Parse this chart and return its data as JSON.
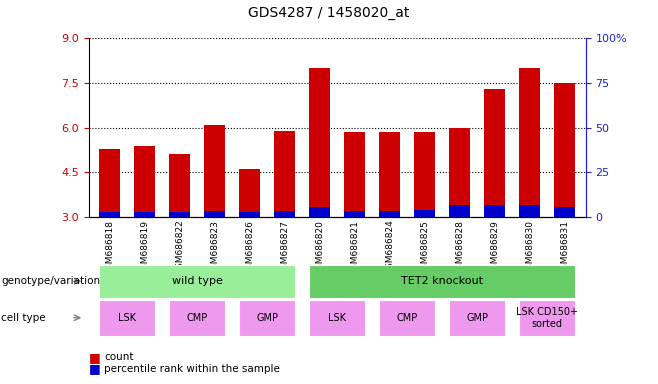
{
  "title": "GDS4287 / 1458020_at",
  "samples": [
    "GSM686818",
    "GSM686819",
    "GSM686822",
    "GSM686823",
    "GSM686826",
    "GSM686827",
    "GSM686820",
    "GSM686821",
    "GSM686824",
    "GSM686825",
    "GSM686828",
    "GSM686829",
    "GSM686830",
    "GSM686831"
  ],
  "count_values": [
    5.3,
    5.4,
    5.1,
    6.1,
    4.6,
    5.9,
    8.0,
    5.85,
    5.85,
    5.85,
    6.0,
    7.3,
    8.0,
    7.5
  ],
  "percentile_values": [
    3.15,
    3.15,
    3.15,
    3.2,
    3.15,
    3.2,
    3.35,
    3.2,
    3.2,
    3.25,
    3.4,
    3.4,
    3.4,
    3.35
  ],
  "ylim_left": [
    3,
    9
  ],
  "ylim_right": [
    0,
    100
  ],
  "yticks_left": [
    3,
    4.5,
    6,
    7.5,
    9
  ],
  "yticks_right": [
    0,
    25,
    50,
    75,
    100
  ],
  "bar_color": "#cc0000",
  "percentile_color": "#0000cc",
  "bar_width": 0.6,
  "genotype_groups": [
    {
      "label": "wild type",
      "start": 0,
      "end": 5,
      "color": "#99ee99"
    },
    {
      "label": "TET2 knockout",
      "start": 6,
      "end": 13,
      "color": "#66cc66"
    }
  ],
  "cell_type_groups": [
    {
      "label": "LSK",
      "start": 0,
      "end": 1,
      "color": "#ee99ee"
    },
    {
      "label": "CMP",
      "start": 2,
      "end": 3,
      "color": "#ee99ee"
    },
    {
      "label": "GMP",
      "start": 4,
      "end": 5,
      "color": "#ee99ee"
    },
    {
      "label": "LSK",
      "start": 6,
      "end": 7,
      "color": "#ee99ee"
    },
    {
      "label": "CMP",
      "start": 8,
      "end": 9,
      "color": "#ee99ee"
    },
    {
      "label": "GMP",
      "start": 10,
      "end": 11,
      "color": "#ee99ee"
    },
    {
      "label": "LSK CD150+\nsorted",
      "start": 12,
      "end": 13,
      "color": "#ee99ee"
    }
  ],
  "legend_count_label": "count",
  "legend_percentile_label": "percentile rank within the sample",
  "bar_color_label": "#cc0000",
  "pct_color_label": "#0000cc",
  "background_color": "#ffffff",
  "tick_color_left": "#cc0000",
  "tick_color_right": "#2222cc"
}
